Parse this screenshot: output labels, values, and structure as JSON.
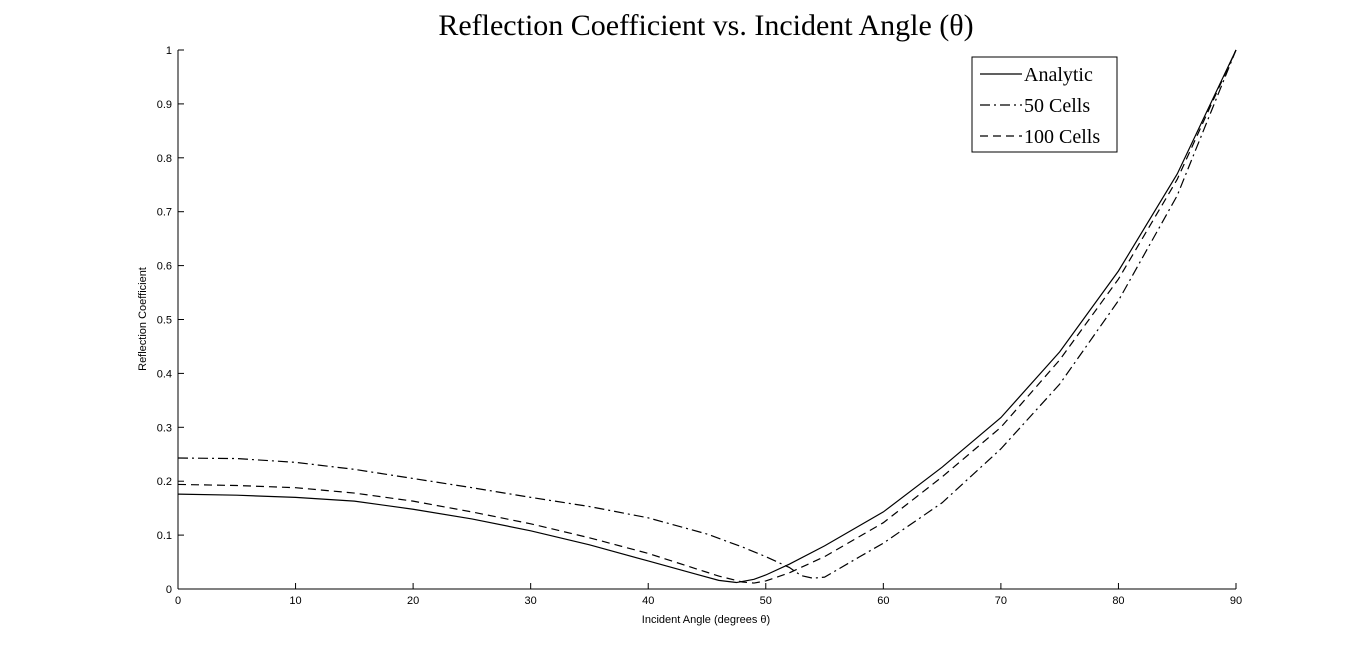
{
  "chart_data": {
    "type": "line",
    "title": "Reflection Coefficient vs. Incident Angle (θ)",
    "xlabel": "Incident Angle (degrees θ)",
    "ylabel": "Reflection Coefficient",
    "xlim": [
      0,
      90
    ],
    "ylim": [
      0,
      1
    ],
    "xticks": [
      0,
      10,
      20,
      30,
      40,
      50,
      60,
      70,
      80,
      90
    ],
    "yticks": [
      0,
      0.1,
      0.2,
      0.3,
      0.4,
      0.5,
      0.6,
      0.7,
      0.8,
      0.9,
      1
    ],
    "grid": false,
    "legend_position": "top-right",
    "series": [
      {
        "name": "Analytic",
        "line_style": "solid",
        "color": "#000000",
        "x": [
          0,
          5,
          10,
          15,
          20,
          25,
          30,
          35,
          40,
          44,
          46,
          47.5,
          49,
          50,
          52,
          55,
          60,
          65,
          70,
          75,
          80,
          85,
          90
        ],
        "y": [
          0.176,
          0.174,
          0.17,
          0.163,
          0.148,
          0.13,
          0.108,
          0.082,
          0.052,
          0.028,
          0.016,
          0.012,
          0.018,
          0.026,
          0.046,
          0.08,
          0.143,
          0.226,
          0.318,
          0.44,
          0.59,
          0.77,
          1.0
        ]
      },
      {
        "name": "50 Cells",
        "line_style": "dashdot",
        "color": "#000000",
        "x": [
          0,
          5,
          10,
          15,
          20,
          25,
          30,
          35,
          40,
          45,
          48,
          50,
          52,
          53,
          54,
          55,
          58,
          60,
          65,
          70,
          75,
          80,
          85,
          90
        ],
        "y": [
          0.243,
          0.242,
          0.235,
          0.222,
          0.205,
          0.188,
          0.17,
          0.153,
          0.132,
          0.102,
          0.078,
          0.06,
          0.04,
          0.025,
          0.02,
          0.022,
          0.06,
          0.085,
          0.16,
          0.26,
          0.38,
          0.535,
          0.73,
          1.0
        ]
      },
      {
        "name": "100 Cells",
        "line_style": "dashed",
        "color": "#000000",
        "x": [
          0,
          5,
          10,
          15,
          20,
          25,
          30,
          35,
          40,
          44,
          46,
          48,
          49,
          50,
          52,
          55,
          60,
          65,
          70,
          75,
          80,
          85,
          90
        ],
        "y": [
          0.194,
          0.192,
          0.188,
          0.178,
          0.163,
          0.143,
          0.121,
          0.095,
          0.066,
          0.038,
          0.024,
          0.013,
          0.011,
          0.015,
          0.03,
          0.06,
          0.123,
          0.208,
          0.3,
          0.425,
          0.575,
          0.76,
          1.0
        ]
      }
    ]
  }
}
